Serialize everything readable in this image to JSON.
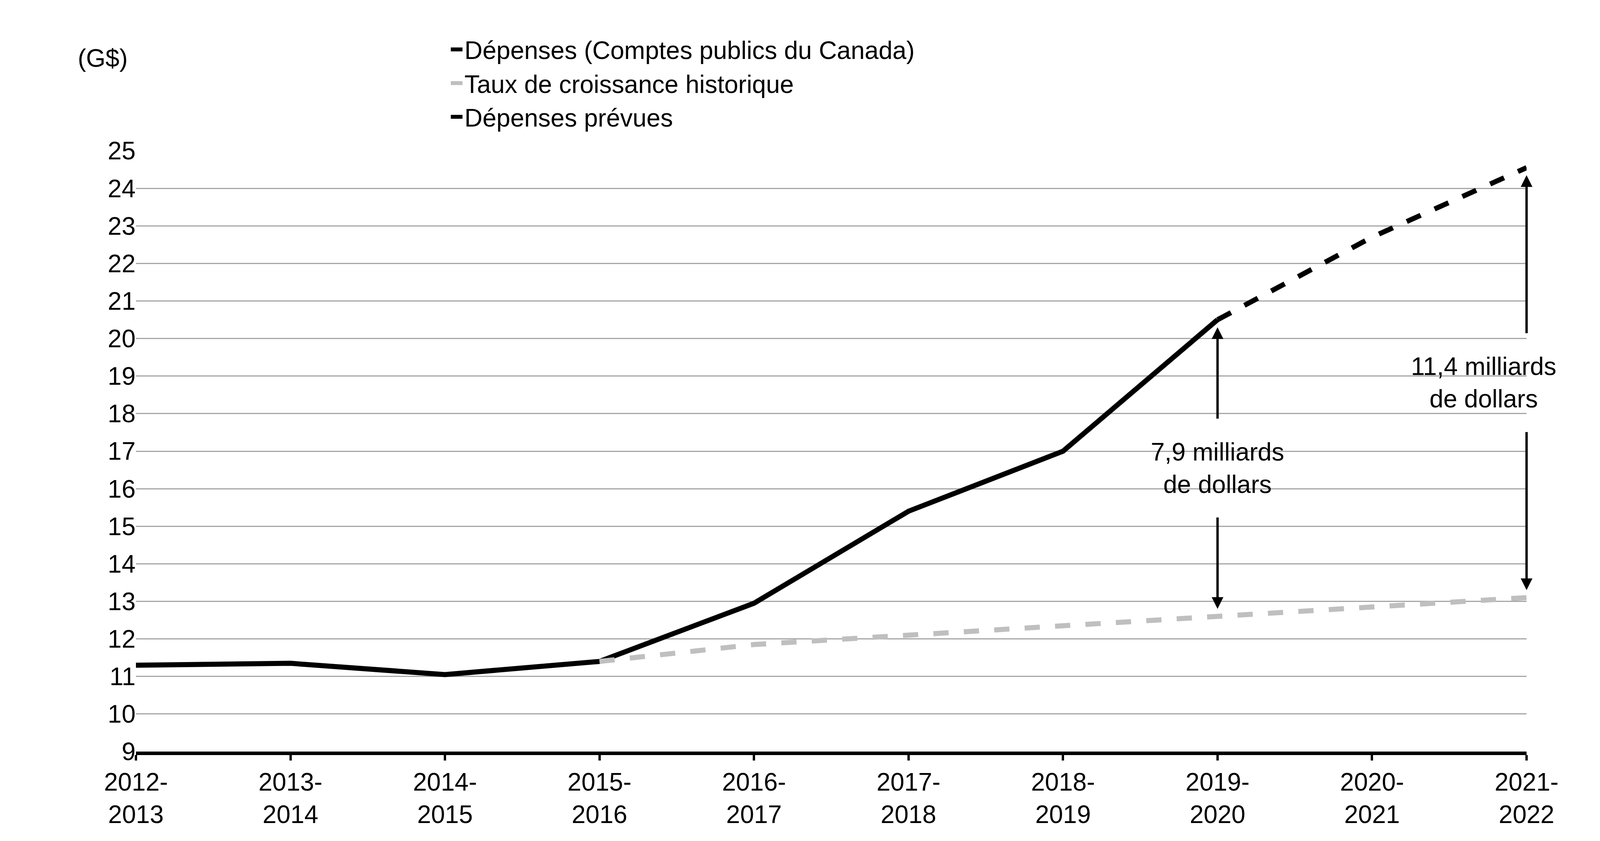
{
  "chart_data": {
    "type": "line",
    "y_label": "(G$)",
    "categories": [
      "2012-2013",
      "2013-2014",
      "2014-2015",
      "2015-2016",
      "2016-2017",
      "2017-2018",
      "2018-2019",
      "2019-2020",
      "2020-2021",
      "2021-2022"
    ],
    "series": [
      {
        "name": "Dépenses (Comptes publics du Canada)",
        "color": "#000000",
        "line_style": "solid",
        "values": [
          11.3,
          11.35,
          11.05,
          11.4,
          12.95,
          15.4,
          17.0,
          20.5,
          null,
          null
        ]
      },
      {
        "name": "Taux de croissance historique",
        "color": "#bfbfbf",
        "line_style": "dashed",
        "values": [
          null,
          null,
          null,
          11.4,
          11.85,
          12.1,
          12.35,
          12.6,
          12.85,
          13.1
        ]
      },
      {
        "name": "Dépenses prévues",
        "color": "#000000",
        "line_style": "dashed",
        "values": [
          null,
          null,
          null,
          null,
          null,
          null,
          null,
          20.5,
          22.7,
          24.55
        ]
      }
    ],
    "annotations": [
      {
        "lines": [
          "7,9 milliards",
          "de dollars"
        ],
        "category": "2019-2020",
        "value": 7.9
      },
      {
        "lines": [
          "11,4 milliards",
          "de dollars"
        ],
        "category": "2021-2022",
        "value": 11.4
      }
    ],
    "ylim": [
      9,
      25
    ],
    "yticks": [
      9,
      10,
      11,
      12,
      13,
      14,
      15,
      16,
      17,
      18,
      19,
      20,
      21,
      22,
      23,
      24,
      25
    ],
    "grid": true,
    "legend": "top"
  }
}
